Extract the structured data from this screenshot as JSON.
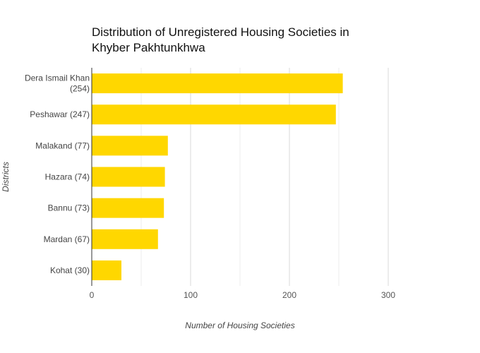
{
  "chart_data": {
    "type": "bar",
    "orientation": "horizontal",
    "title_lines": [
      "Distribution of Unregistered Housing Societies in",
      "Khyber Pakhtunkhwa"
    ],
    "xlabel": "Number of Housing Societies",
    "ylabel": "Districts",
    "categories": [
      [
        "Dera Ismail Khan",
        "(254)"
      ],
      [
        "Peshawar (247)"
      ],
      [
        "Malakand (77)"
      ],
      [
        "Hazara (74)"
      ],
      [
        "Bannu (73)"
      ],
      [
        "Mardan (67)"
      ],
      [
        "Kohat (30)"
      ]
    ],
    "values": [
      254,
      247,
      77,
      74,
      73,
      67,
      30
    ],
    "xlim": [
      0,
      300
    ],
    "xticks": [
      0,
      100,
      200,
      300
    ],
    "x_minor_gridlines": [
      50,
      150,
      250
    ],
    "grid": true,
    "bar_color": "#FFD700",
    "grid_color": "#d9d9d9"
  }
}
